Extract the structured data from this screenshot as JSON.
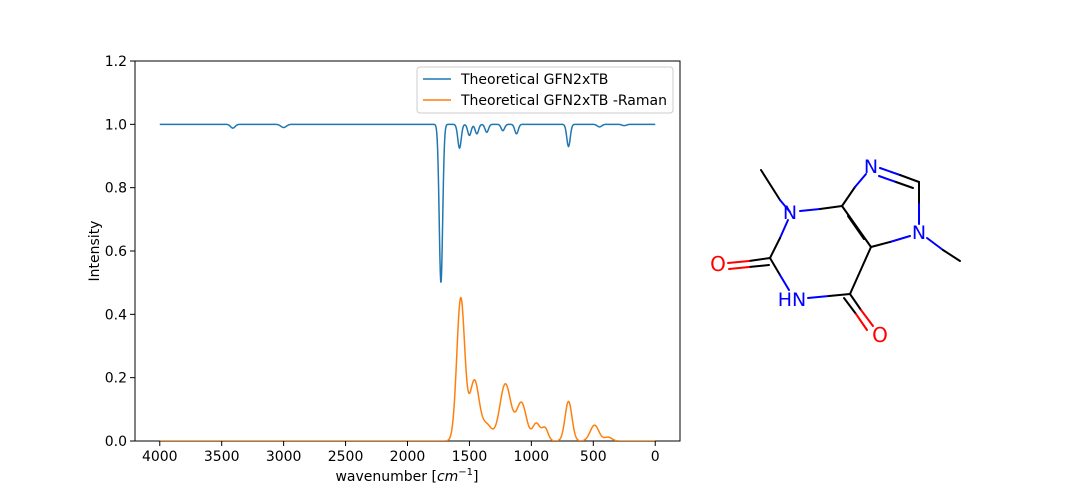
{
  "chart_data": {
    "type": "line",
    "title": "",
    "xlabel": "wavenumber [cm^-1]",
    "xlabel_main": "wavenumber [",
    "xlabel_unit": "cm",
    "xlabel_exp": "−1",
    "xlabel_close": "]",
    "ylabel": "Intensity",
    "xlim": [
      4200,
      -200
    ],
    "ylim": [
      0,
      1.2
    ],
    "x_reversed": true,
    "grid": false,
    "legend_position": "top-right",
    "x_ticks": [
      4000,
      3500,
      3000,
      2500,
      2000,
      1500,
      1000,
      500,
      0
    ],
    "y_ticks": [
      0.0,
      0.2,
      0.4,
      0.6,
      0.8,
      1.0,
      1.2
    ],
    "x_tick_labels": [
      "4000",
      "3500",
      "3000",
      "2500",
      "2000",
      "1500",
      "1000",
      "500",
      "0"
    ],
    "y_tick_labels": [
      "0.0",
      "0.2",
      "0.4",
      "0.6",
      "0.8",
      "1.0",
      "1.2"
    ],
    "series": [
      {
        "name": "Theoretical GFN2xTB",
        "color": "#1f77b4",
        "baseline": 1.0,
        "x_range": [
          4000,
          0
        ],
        "peaks": [
          {
            "center": 3410,
            "depth": 0.012,
            "width": 18
          },
          {
            "center": 3000,
            "depth": 0.01,
            "width": 22
          },
          {
            "center": 1730,
            "depth": 0.5,
            "width": 14
          },
          {
            "center": 1580,
            "depth": 0.075,
            "width": 14
          },
          {
            "center": 1500,
            "depth": 0.035,
            "width": 14
          },
          {
            "center": 1440,
            "depth": 0.03,
            "width": 14
          },
          {
            "center": 1360,
            "depth": 0.025,
            "width": 14
          },
          {
            "center": 1230,
            "depth": 0.02,
            "width": 14
          },
          {
            "center": 1120,
            "depth": 0.03,
            "width": 14
          },
          {
            "center": 700,
            "depth": 0.07,
            "width": 14
          },
          {
            "center": 450,
            "depth": 0.008,
            "width": 18
          },
          {
            "center": 250,
            "depth": 0.004,
            "width": 18
          }
        ]
      },
      {
        "name": "Theoretical GFN2xTB -Raman",
        "color": "#ff7f0e",
        "baseline": 0.0,
        "x_range": [
          4000,
          0
        ],
        "peaks": [
          {
            "center": 1570,
            "height": 0.45,
            "width": 32
          },
          {
            "center": 1460,
            "height": 0.19,
            "width": 38
          },
          {
            "center": 1360,
            "height": 0.05,
            "width": 40
          },
          {
            "center": 1210,
            "height": 0.18,
            "width": 45
          },
          {
            "center": 1080,
            "height": 0.12,
            "width": 40
          },
          {
            "center": 960,
            "height": 0.055,
            "width": 30
          },
          {
            "center": 890,
            "height": 0.04,
            "width": 25
          },
          {
            "center": 700,
            "height": 0.125,
            "width": 28
          },
          {
            "center": 490,
            "height": 0.05,
            "width": 35
          },
          {
            "center": 380,
            "height": 0.012,
            "width": 30
          }
        ]
      }
    ]
  },
  "molecule": {
    "atom_labels": {
      "n_top": "N",
      "n_left": "N",
      "n_right": "N",
      "nh": "HN",
      "o_left": "O",
      "o_bottom": "O"
    },
    "colors": {
      "bond": "#000000",
      "nitrogen": "#0000ff",
      "oxygen": "#ff0000"
    }
  }
}
